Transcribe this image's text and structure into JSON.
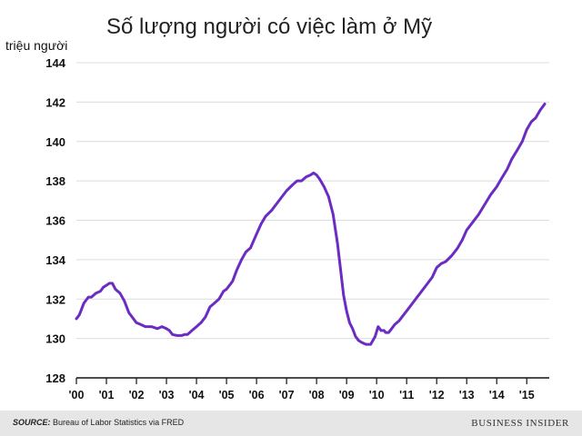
{
  "chart_data": {
    "type": "line",
    "title": "Số lượng người có việc làm ở Mỹ",
    "ylabel": "triệu người",
    "xlabel": "",
    "ylim": [
      128,
      144
    ],
    "yticks": [
      "128",
      "130",
      "132",
      "134",
      "136",
      "138",
      "140",
      "142",
      "144"
    ],
    "xlim": [
      2000,
      2015.75
    ],
    "xticks": [
      "'00",
      "'01",
      "'02",
      "'03",
      "'04",
      "'05",
      "'06",
      "'07",
      "'08",
      "'09",
      "'10",
      "'11",
      "'12",
      "'13",
      "'14",
      "'15"
    ],
    "grid": "horizontal",
    "color": "#6a2cc2",
    "series": [
      {
        "x": [
          2000.0,
          2000.1,
          2000.25,
          2000.4,
          2000.5,
          2000.65,
          2000.8,
          2000.9,
          2001.0,
          2001.1,
          2001.2,
          2001.3,
          2001.45,
          2001.6,
          2001.75,
          2001.9,
          2002.0,
          2002.15,
          2002.3,
          2002.5,
          2002.7,
          2002.85,
          2003.0,
          2003.1,
          2003.2,
          2003.35,
          2003.5,
          2003.6,
          2003.7,
          2003.85,
          2004.0,
          2004.15,
          2004.3,
          2004.45,
          2004.6,
          2004.75,
          2004.9,
          2005.0,
          2005.2,
          2005.35,
          2005.5,
          2005.65,
          2005.8,
          2006.0,
          2006.15,
          2006.3,
          2006.5,
          2006.65,
          2006.8,
          2007.0,
          2007.2,
          2007.35,
          2007.5,
          2007.65,
          2007.8,
          2007.9,
          2008.0,
          2008.1,
          2008.25,
          2008.4,
          2008.55,
          2008.7,
          2008.8,
          2008.9,
          2009.0,
          2009.1,
          2009.2,
          2009.3,
          2009.4,
          2009.5,
          2009.65,
          2009.8,
          2009.95,
          2010.05,
          2010.15,
          2010.25,
          2010.3,
          2010.4,
          2010.5,
          2010.6,
          2010.75,
          2010.9,
          2011.0,
          2011.2,
          2011.35,
          2011.5,
          2011.7,
          2011.85,
          2012.0,
          2012.15,
          2012.3,
          2012.5,
          2012.7,
          2012.85,
          2013.0,
          2013.2,
          2013.4,
          2013.6,
          2013.8,
          2014.0,
          2014.15,
          2014.35,
          2014.5,
          2014.7,
          2014.85,
          2015.0,
          2015.15,
          2015.3,
          2015.45,
          2015.6
        ],
        "y": [
          131.0,
          131.2,
          131.8,
          132.1,
          132.1,
          132.3,
          132.4,
          132.6,
          132.7,
          132.8,
          132.8,
          132.5,
          132.3,
          131.9,
          131.3,
          131.0,
          130.8,
          130.7,
          130.6,
          130.6,
          130.5,
          130.6,
          130.5,
          130.4,
          130.2,
          130.15,
          130.15,
          130.2,
          130.2,
          130.4,
          130.6,
          130.8,
          131.1,
          131.6,
          131.8,
          132.0,
          132.4,
          132.5,
          132.9,
          133.5,
          134.0,
          134.4,
          134.6,
          135.3,
          135.8,
          136.2,
          136.5,
          136.8,
          137.1,
          137.5,
          137.8,
          138.0,
          138.0,
          138.2,
          138.3,
          138.4,
          138.3,
          138.1,
          137.7,
          137.2,
          136.3,
          134.8,
          133.5,
          132.2,
          131.4,
          130.8,
          130.5,
          130.1,
          129.9,
          129.8,
          129.7,
          129.7,
          130.1,
          130.6,
          130.4,
          130.4,
          130.3,
          130.3,
          130.5,
          130.7,
          130.9,
          131.2,
          131.4,
          131.8,
          132.1,
          132.4,
          132.8,
          133.1,
          133.6,
          133.8,
          133.9,
          134.2,
          134.6,
          135.0,
          135.5,
          135.9,
          136.3,
          136.8,
          137.3,
          137.7,
          138.1,
          138.6,
          139.1,
          139.6,
          140.0,
          140.6,
          141.0,
          141.2,
          141.6,
          141.9
        ]
      }
    ]
  },
  "footer": {
    "source_label": "SOURCE:",
    "source_text": "Bureau of Labor Statistics via FRED",
    "brand": "BUSINESS INSIDER"
  }
}
